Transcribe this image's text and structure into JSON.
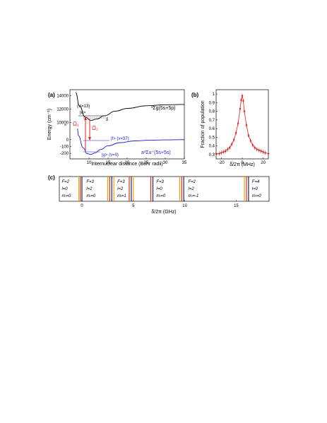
{
  "figure": {
    "panel_labels": {
      "a": "(a)",
      "b": "(b)",
      "c": "(c)"
    }
  },
  "chart_data": [
    {
      "panel": "a",
      "type": "line",
      "xlabel": "Internuclear distance (Bohr radii)",
      "ylabel": "Energy (cm⁻¹)",
      "x_ticks": [
        10,
        15,
        20,
        25,
        30,
        35
      ],
      "y_ticks_upper": [
        "14000",
        "12000",
        "10000"
      ],
      "y_ticks_lower": [
        "0",
        "-100",
        "-200"
      ],
      "colors": {
        "excited": "#000000",
        "ground": "#1a1adb",
        "laser": "#e02020"
      },
      "series": [
        {
          "name": "excited",
          "x": [
            6.5,
            7.5,
            9,
            10.5,
            12,
            14,
            17,
            20,
            25,
            30,
            35
          ],
          "y": [
            14500,
            12500,
            10800,
            10300,
            10500,
            11000,
            11700,
            12100,
            12500,
            12650,
            12700
          ]
        },
        {
          "name": "ground",
          "x": [
            7.2,
            8.5,
            9.5,
            10.5,
            11.5,
            13,
            15,
            18,
            22,
            26,
            30,
            35
          ],
          "y": [
            60,
            -120,
            -205,
            -215,
            -195,
            -145,
            -90,
            -45,
            -18,
            -8,
            -3,
            0
          ]
        }
      ],
      "annotations": {
        "excited_state_label": "³Σg(5s+5p)",
        "ground_state_label": "a³Σu⁺(5s+5s)",
        "e_state": "|e>",
        "e_vib": "(v′=13)",
        "f_state": "|f> (v=37)",
        "g_state": "|g> (v=0)",
        "omega1": "Ω₁",
        "omega2": "Ω₂",
        "delta": "δ"
      }
    },
    {
      "panel": "b",
      "type": "scatter",
      "xlabel": "δ/2π (MHz)",
      "ylabel": "Fraction of population",
      "x_ticks": [
        -20,
        0,
        20
      ],
      "y_ticks": [
        0.3,
        0.4,
        0.5,
        0.6,
        0.7,
        0.8,
        0.9,
        1
      ],
      "xlim": [
        -25,
        25
      ],
      "ylim": [
        0.25,
        1.05
      ],
      "x": [
        -25,
        -22,
        -20,
        -18,
        -16,
        -14,
        -12,
        -10,
        -8,
        -6,
        -4,
        -2,
        -1,
        0,
        1,
        2,
        4,
        6,
        8,
        10,
        12,
        14,
        16,
        18,
        20,
        22,
        25
      ],
      "y": [
        0.31,
        0.31,
        0.32,
        0.33,
        0.34,
        0.36,
        0.38,
        0.42,
        0.47,
        0.55,
        0.66,
        0.83,
        0.93,
        0.98,
        0.92,
        0.8,
        0.64,
        0.52,
        0.46,
        0.41,
        0.38,
        0.36,
        0.35,
        0.34,
        0.33,
        0.32,
        0.31
      ],
      "colors": {
        "points": "#e02020"
      }
    },
    {
      "panel": "c",
      "type": "bar",
      "xlabel": "δ/2π (GHz)",
      "x_ticks": [
        0,
        5,
        10,
        15
      ],
      "xlim": [
        -2.2,
        18.2
      ],
      "lines": [
        -0.3,
        -0.15,
        0.0,
        2.5,
        2.7,
        2.9,
        3.1,
        4.6,
        4.8,
        5.0,
        6.7,
        6.9,
        9.5,
        9.7,
        9.9,
        15.8,
        16.0,
        16.2
      ],
      "line_colors": [
        "#f0a000",
        "#e03000",
        "#202080"
      ],
      "states": [
        {
          "F": "F=2",
          "l": "l=0",
          "m": "mₗ=0",
          "x": -2.1
        },
        {
          "F": "F=3",
          "l": "l=2",
          "m": "mₗ=0",
          "x": 0.3
        },
        {
          "F": "F=3",
          "l": "l=2",
          "m": "mₗ=1",
          "x": 3.3
        },
        {
          "F": "F=3",
          "l": "l=0",
          "m": "mₗ=0",
          "x": 7.1
        },
        {
          "F": "F=2",
          "l": "l=2",
          "m": "mₗ=-1",
          "x": 10.2
        },
        {
          "F": "F=4",
          "l": "l=0",
          "m": "mₗ=0",
          "x": 16.4
        }
      ]
    }
  ]
}
